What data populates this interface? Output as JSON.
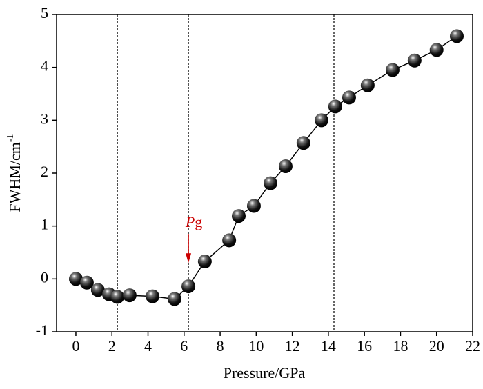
{
  "chart_data": {
    "type": "line",
    "x_label": "Pressure/GPa",
    "y_label": [
      "FWHM/cm",
      "-1"
    ],
    "annotation": [
      "P",
      "g"
    ],
    "x": [
      0,
      0.61,
      1.22,
      1.84,
      2.3,
      2.98,
      4.25,
      5.47,
      6.24,
      7.15,
      8.5,
      9.03,
      9.87,
      10.79,
      11.63,
      12.62,
      13.62,
      14.38,
      15.15,
      16.18,
      17.56,
      18.78,
      20.0,
      21.12
    ],
    "series": [
      {
        "color": "#000000",
        "values": [
          0,
          -0.07,
          -0.21,
          -0.29,
          -0.34,
          -0.31,
          -0.33,
          -0.38,
          -0.14,
          0.33,
          0.73,
          1.19,
          1.38,
          1.81,
          2.13,
          2.57,
          3.0,
          3.26,
          3.43,
          3.66,
          3.95,
          4.13,
          4.33,
          4.59
        ]
      }
    ],
    "vlines": [
      2.3,
      6.24,
      14.31
    ],
    "annotation_color": "#cc0000",
    "xlim": [
      -1.07,
      22
    ],
    "xticks": [
      0,
      2,
      4,
      6,
      8,
      10,
      12,
      14,
      16,
      18,
      20,
      22
    ],
    "ylim": [
      -1,
      5
    ],
    "yticks": [
      -1,
      0,
      1,
      2,
      3,
      4,
      5
    ]
  }
}
